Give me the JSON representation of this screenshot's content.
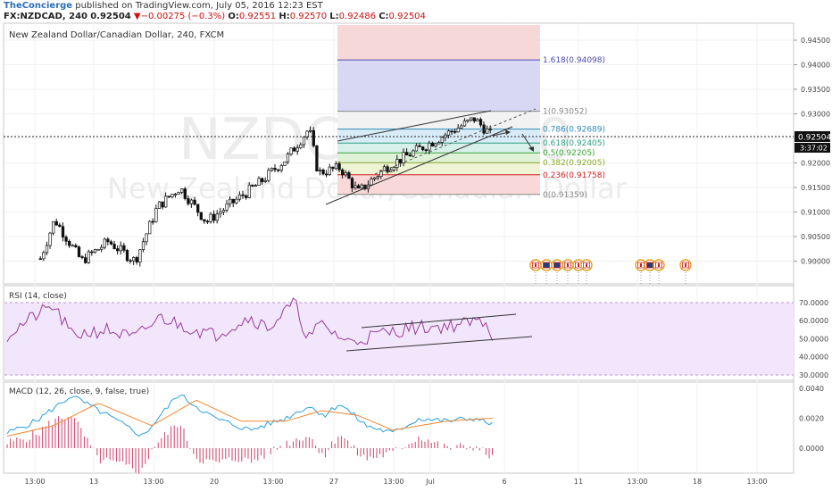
{
  "header": {
    "publisher": "TheConcierge",
    "published_text": "published on TradingView.com, July 05, 2016 12:23 EST",
    "symbol": "FX:NZDCAD, 240",
    "price": "0.92504",
    "change": "−0.00275 (−0.3%)",
    "o_label": "O:",
    "o": "0.92551",
    "h_label": "H:",
    "h": "0.92570",
    "l_label": "L:",
    "l": "0.92486",
    "c_label": "C:",
    "c": "0.92504"
  },
  "main": {
    "title": "New Zealand Dollar/Canadian Dollar, 240, FXCM",
    "watermark_symbol": "NZDCAD, 240",
    "watermark_name": "New Zealand Dollar/Canadian Dollar",
    "price_axis": [
      "0.94500",
      "0.94000",
      "0.93500",
      "0.93000",
      "0.92500",
      "0.92000",
      "0.91500",
      "0.91000",
      "0.90500",
      "0.90000"
    ],
    "last_price": "0.92504",
    "countdown": "3:37:02",
    "fib_levels": [
      {
        "label": "1.618(0.94098)",
        "value": 0.94098,
        "color": "#4a4aa8"
      },
      {
        "label": "1(0.93052)",
        "value": 0.93052,
        "color": "#888888"
      },
      {
        "label": "0.786(0.92689)",
        "value": 0.92689,
        "color": "#2e8bb8"
      },
      {
        "label": "0.618(0.92405)",
        "value": 0.92405,
        "color": "#2aa080"
      },
      {
        "label": "0.5(0.92205)",
        "value": 0.92205,
        "color": "#3aa83a"
      },
      {
        "label": "0.382(0.92005)",
        "value": 0.92005,
        "color": "#88a820"
      },
      {
        "label": "0.236(0.91758)",
        "value": 0.91758,
        "color": "#d02020"
      },
      {
        "label": "0(0.91359)",
        "value": 0.91359,
        "color": "#888888"
      }
    ]
  },
  "rsi": {
    "title": "RSI (14, close)",
    "axis": [
      "70.0000",
      "60.0000",
      "50.0000",
      "40.0000",
      "30.0000"
    ]
  },
  "macd": {
    "title": "MACD (12, 26, close, 9, false, true)",
    "axis": [
      "0.0040",
      "0.0020",
      "0.0000"
    ]
  },
  "time_axis": [
    "13:00",
    "13",
    "13:00",
    "20",
    "13:00",
    "27",
    "13:00",
    "Jul",
    "6",
    "11",
    "13:00",
    "18",
    "13:00"
  ],
  "colors": {
    "up_candle": "#ffffff",
    "down_candle": "#111111",
    "rsi_line": "#9b3b9b",
    "rsi_band": "#f1e6fb",
    "macd_line": "#2a9fe0",
    "signal_line": "#f2862e",
    "histogram": "#d0406a"
  }
}
